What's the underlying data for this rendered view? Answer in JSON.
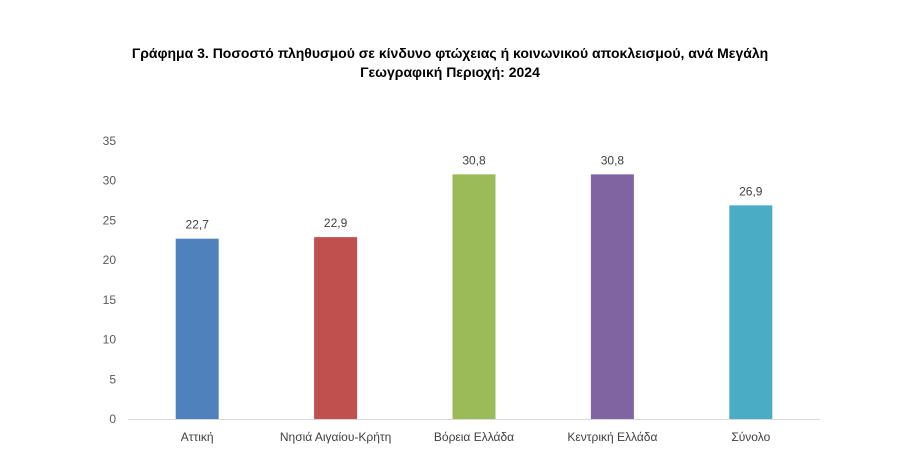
{
  "chart_data": {
    "type": "bar",
    "title_line1": "Γράφημα 3. Ποσοστό πληθυσμού σε κίνδυνο φτώχειας ή κοινωνικού αποκλεισμού, ανά  Μεγάλη",
    "title_line2": "Γεωγραφική Περιοχή: 2024",
    "categories": [
      "Αττική",
      "Νησιά Αιγαίου-Κρήτη",
      "Βόρεια Ελλάδα",
      "Κεντρική Ελλάδα",
      "Σύνολο"
    ],
    "values": [
      22.7,
      22.9,
      30.8,
      30.8,
      26.9
    ],
    "data_labels": [
      "22,7",
      "22,9",
      "30,8",
      "30,8",
      "26,9"
    ],
    "colors": [
      "#4F81BD",
      "#C0504D",
      "#9BBB59",
      "#8064A2",
      "#4BACC6"
    ],
    "ylim": [
      0,
      35
    ],
    "yticks": [
      0,
      5,
      10,
      15,
      20,
      25,
      30,
      35
    ],
    "grid": false,
    "legend": "none"
  }
}
